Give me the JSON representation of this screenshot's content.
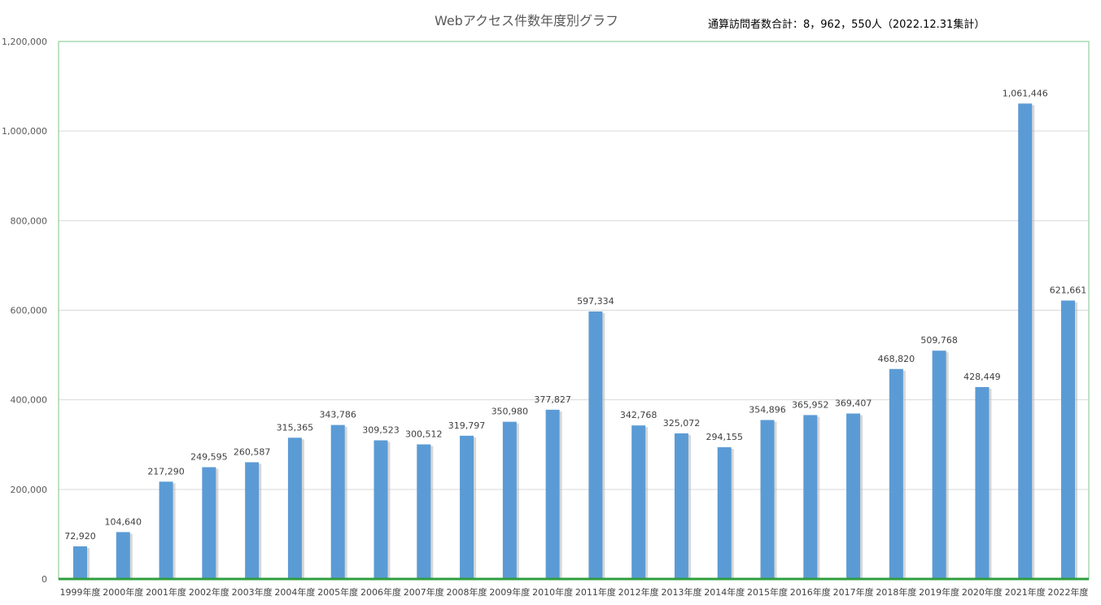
{
  "chart_data": {
    "type": "bar",
    "title": "Webアクセス件数年度別グラフ",
    "annotation": "通算訪問者数合計：8，962，550人（2022.12.31集計）",
    "categories": [
      "1999年度",
      "2000年度",
      "2001年度",
      "2002年度",
      "2003年度",
      "2004年度",
      "2005年度",
      "2006年度",
      "2007年度",
      "2008年度",
      "2009年度",
      "2010年度",
      "2011年度",
      "2012年度",
      "2013年度",
      "2014年度",
      "2015年度",
      "2016年度",
      "2017年度",
      "2018年度",
      "2019年度",
      "2020年度",
      "2021年度",
      "2022年度"
    ],
    "values": [
      72920,
      104640,
      217290,
      249595,
      260587,
      315365,
      343786,
      309523,
      300512,
      319797,
      350980,
      377827,
      597334,
      342768,
      325072,
      294155,
      354896,
      365952,
      369407,
      468820,
      509768,
      428449,
      1061446,
      621661
    ],
    "data_labels": [
      "72,920",
      "104,640",
      "217,290",
      "249,595",
      "260,587",
      "315,365",
      "343,786",
      "309,523",
      "300,512",
      "319,797",
      "350,980",
      "377,827",
      "597,334",
      "342,768",
      "325,072",
      "294,155",
      "354,896",
      "365,952",
      "369,407",
      "468,820",
      "509,768",
      "428,449",
      "1,061,446",
      "621,661"
    ],
    "yticks": [
      0,
      200000,
      400000,
      600000,
      800000,
      1000000,
      1200000
    ],
    "ytick_labels": [
      "0",
      "200,000",
      "400,000",
      "600,000",
      "800,000",
      "1,000,000",
      "1,200,000"
    ],
    "ylim": [
      0,
      1200000
    ],
    "xlabel": "",
    "ylabel": "",
    "grid": true,
    "legend": "none",
    "colors": {
      "bar": "#5b9bd5",
      "bar_shadow": "#b7b7b7",
      "baseline": "#2e9e3e",
      "plot_border": "#a9d8b0",
      "grid": "#d9d9d9"
    }
  }
}
